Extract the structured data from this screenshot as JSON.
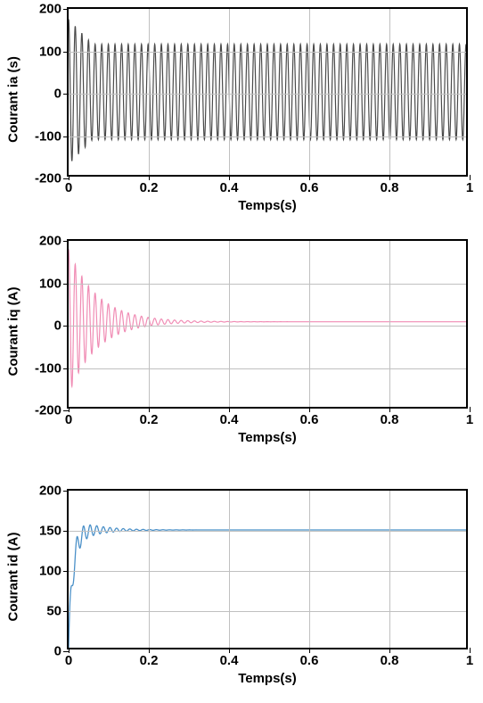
{
  "chart1": {
    "type": "line",
    "ylabel": "Courant ia (s)",
    "xlabel": "Temps(s)",
    "label_fontsize": 15,
    "tick_fontsize": 15,
    "xlim": [
      0,
      1
    ],
    "ylim": [
      -200,
      200
    ],
    "xticks": [
      0,
      0.2,
      0.4,
      0.6,
      0.8,
      1
    ],
    "yticks": [
      -200,
      -100,
      0,
      100,
      200
    ],
    "line_color": "#4a4a4a",
    "line_width": 1.2,
    "grid_color": "#c0c0c0",
    "background_color": "#ffffff",
    "border_color": "#000000",
    "signal": {
      "type": "oscillating_steady",
      "initial_peak": 175,
      "steady_amplitude": 115,
      "settle_time": 0.06,
      "frequency": 60,
      "baseline": 0
    }
  },
  "chart2": {
    "type": "line",
    "ylabel": "Courant iq (A)",
    "xlabel": "Temps(s)",
    "label_fontsize": 15,
    "tick_fontsize": 15,
    "xlim": [
      0,
      1
    ],
    "ylim": [
      -200,
      200
    ],
    "xticks": [
      0,
      0.2,
      0.4,
      0.6,
      0.8,
      1
    ],
    "yticks": [
      -200,
      -100,
      0,
      100,
      200
    ],
    "line_color": "#f08cb4",
    "line_width": 1.2,
    "grid_color": "#c0c0c0",
    "background_color": "#ffffff",
    "border_color": "#000000",
    "signal": {
      "type": "decaying_oscillation",
      "initial_peak": 180,
      "initial_trough": -150,
      "settle_value": 5,
      "settle_time": 0.35,
      "frequency": 60,
      "decay_rate": 14,
      "baseline": 5
    }
  },
  "chart3": {
    "type": "line",
    "ylabel": "Courant id (A)",
    "xlabel": "Temps(s)",
    "label_fontsize": 15,
    "tick_fontsize": 15,
    "xlim": [
      0,
      1
    ],
    "ylim": [
      0,
      200
    ],
    "xticks": [
      0,
      0.2,
      0.4,
      0.6,
      0.8,
      1
    ],
    "yticks": [
      0,
      50,
      100,
      150,
      200
    ],
    "line_color": "#4a90c8",
    "line_width": 1.3,
    "grid_color": "#c0c0c0",
    "background_color": "#ffffff",
    "border_color": "#000000",
    "signal": {
      "type": "rising_oscillation_settle",
      "start_value": 0,
      "settle_value": 150,
      "initial_overshoot": 170,
      "initial_undershoot": 55,
      "settle_time": 0.2,
      "frequency": 60,
      "decay_rate": 18,
      "baseline": 150
    }
  }
}
